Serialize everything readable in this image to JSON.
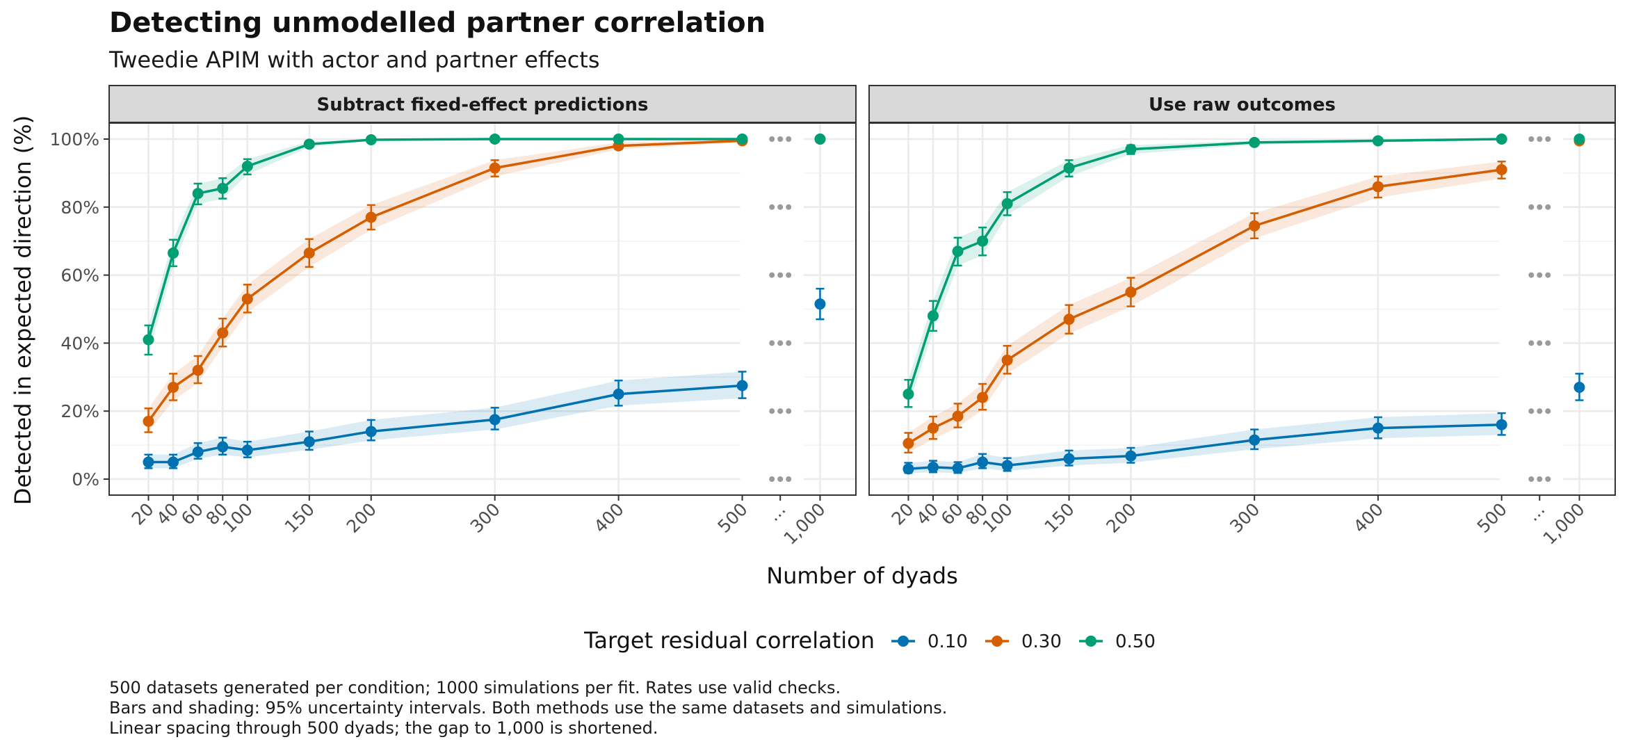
{
  "title": "Detecting unmodelled partner correlation",
  "subtitle": "Tweedie APIM with actor and partner effects",
  "caption_lines": [
    "500 datasets generated per condition; 1000 simulations per fit. Rates use valid checks.",
    "Bars and shading: 95% uncertainty intervals. Both methods use the same datasets and simulations.",
    "Linear spacing through 500 dyads; the gap to 1,000 is shortened."
  ],
  "chart_data": {
    "type": "line",
    "title": "Detecting unmodelled partner correlation",
    "subtitle": "Tweedie APIM with actor and partner effects",
    "xlabel": "Number of dyads",
    "ylabel": "Detected in expected direction (%)",
    "x_ticks": [
      "20",
      "40",
      "60",
      "80",
      "100",
      "150",
      "200",
      "300",
      "400",
      "500",
      "...",
      "1,000"
    ],
    "x_break_label": "...",
    "y_ticks": [
      "0%",
      "20%",
      "40%",
      "60%",
      "80%",
      "100%"
    ],
    "ylim": [
      -4,
      112
    ],
    "legend_title": "Target residual correlation",
    "legend_position": "bottom",
    "colors": {
      "0.10": "#0072B2",
      "0.30": "#D55E00",
      "0.50": "#009E73"
    },
    "x": [
      20,
      40,
      60,
      80,
      100,
      150,
      200,
      300,
      400,
      500
    ],
    "x_far": 1000,
    "panels": [
      {
        "name": "Subtract fixed-effect predictions",
        "series": [
          {
            "name": "0.10",
            "values": [
              5,
              5,
              8,
              9.5,
              8.5,
              11,
              14,
              17.5,
              25,
              27.5
            ],
            "lower": [
              3.2,
              3.2,
              6,
              7.2,
              6.4,
              8.6,
              11.4,
              14.6,
              21.6,
              23.8
            ],
            "upper": [
              7.2,
              7.2,
              10.6,
              12.2,
              11,
              14,
              17.4,
              21,
              29,
              31.6
            ],
            "far": 51.5,
            "far_lower": 47,
            "far_upper": 56
          },
          {
            "name": "0.30",
            "values": [
              17,
              27,
              32,
              43,
              53,
              66.5,
              77,
              91.5,
              98,
              99.5
            ],
            "lower": [
              13.8,
              23.2,
              28.2,
              39,
              49,
              62.4,
              73.4,
              89,
              97,
              99
            ],
            "upper": [
              20.8,
              31,
              36.2,
              47.2,
              57.2,
              70.6,
              80.6,
              93.8,
              99,
              100
            ],
            "far": 100,
            "far_lower": 99.5,
            "far_upper": 100
          },
          {
            "name": "0.50",
            "values": [
              41,
              66.5,
              84,
              85.5,
              92,
              98.5,
              99.8,
              100,
              100,
              100
            ],
            "lower": [
              36.6,
              62.6,
              80.8,
              82.5,
              89.6,
              97.6,
              99.5,
              99.8,
              99.8,
              99.8
            ],
            "upper": [
              45.2,
              70.4,
              86.9,
              88.5,
              94.1,
              99.3,
              100,
              100,
              100,
              100
            ],
            "far": 100,
            "far_lower": 99.8,
            "far_upper": 100
          }
        ]
      },
      {
        "name": "Use raw outcomes",
        "series": [
          {
            "name": "0.10",
            "values": [
              3,
              3.5,
              3.2,
              5,
              4,
              6,
              6.8,
              11.5,
              15,
              16
            ],
            "lower": [
              1.8,
              2,
              1.8,
              3.2,
              2.4,
              4,
              4.8,
              8.8,
              12,
              13
            ],
            "upper": [
              4.8,
              5.4,
              5,
              7.4,
              6.2,
              8.4,
              9.2,
              14.6,
              18.2,
              19.4
            ],
            "far": 27,
            "far_lower": 23.2,
            "far_upper": 31
          },
          {
            "name": "0.30",
            "values": [
              10.5,
              15,
              18.5,
              24,
              35,
              47,
              55,
              74.5,
              86,
              91
            ],
            "lower": [
              7.8,
              11.8,
              15.2,
              20.4,
              31,
              42.8,
              50.8,
              70.8,
              82.8,
              88.4
            ],
            "upper": [
              13.6,
              18.4,
              22.2,
              28,
              39.2,
              51.2,
              59.2,
              78.2,
              89,
              93.4
            ],
            "far": 99.5,
            "far_lower": 98.9,
            "far_upper": 100
          },
          {
            "name": "0.50",
            "values": [
              25,
              48,
              67,
              70,
              81,
              91.5,
              97,
              99,
              99.5,
              100
            ],
            "lower": [
              21.2,
              43.6,
              62.8,
              65.8,
              77.6,
              89,
              95.6,
              98.3,
              99,
              99.8
            ],
            "upper": [
              29.2,
              52.4,
              71,
              74,
              84.4,
              93.8,
              98.2,
              99.6,
              99.9,
              100
            ],
            "far": 100,
            "far_lower": 99.4,
            "far_upper": 100
          }
        ]
      }
    ]
  }
}
